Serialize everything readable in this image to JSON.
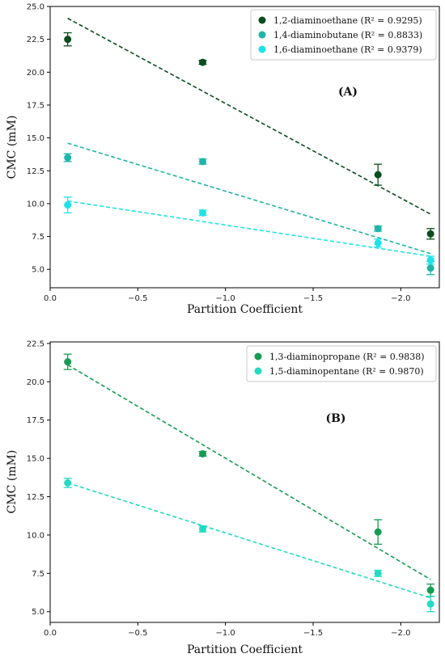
{
  "chart_data": [
    {
      "type": "scatter",
      "panel_label": "(A)",
      "xlabel": "Partition Coefficient",
      "ylabel": "CMC (mM)",
      "xlim": [
        0.0,
        -2.22
      ],
      "ylim": [
        3.6,
        25.0
      ],
      "xticks": [
        0.0,
        -0.5,
        -1.0,
        -1.5,
        -2.0
      ],
      "xtick_labels": [
        "0.0",
        "−0.5",
        "−1.0",
        "−1.5",
        "−2.0"
      ],
      "yticks": [
        5.0,
        7.5,
        10.0,
        12.5,
        15.0,
        17.5,
        20.0,
        22.5,
        25.0
      ],
      "ytick_labels": [
        "5.0",
        "7.5",
        "10.0",
        "12.5",
        "15.0",
        "17.5",
        "20.0",
        "22.5",
        "25.0"
      ],
      "grid": false,
      "legend_position": "top-right",
      "series": [
        {
          "name": "1,2-diaminoethane (R² = 0.9295)",
          "color": "#0b4d1e",
          "x": [
            -0.1,
            -0.87,
            -1.87,
            -2.17
          ],
          "y": [
            22.5,
            20.75,
            12.2,
            7.7
          ],
          "yerr": [
            0.5,
            0.15,
            0.8,
            0.4
          ],
          "trend": {
            "x": [
              -0.1,
              -2.17
            ],
            "y": [
              24.1,
              9.2
            ]
          }
        },
        {
          "name": "1,4-diaminobutane (R² = 0.8833)",
          "color": "#1fb5a8",
          "x": [
            -0.1,
            -0.87,
            -1.87,
            -2.17
          ],
          "y": [
            13.5,
            13.2,
            8.1,
            5.1
          ],
          "yerr": [
            0.3,
            0.2,
            0.2,
            0.5
          ],
          "trend": {
            "x": [
              -0.1,
              -2.17
            ],
            "y": [
              14.6,
              6.2
            ]
          }
        },
        {
          "name": "1,6-diaminoethane (R² = 0.9379)",
          "color": "#1de3e8",
          "x": [
            -0.1,
            -0.87,
            -1.87,
            -2.17
          ],
          "y": [
            9.9,
            9.3,
            7.0,
            5.7
          ],
          "yerr": [
            0.6,
            0.2,
            0.3,
            0.3
          ],
          "trend": {
            "x": [
              -0.1,
              -2.17
            ],
            "y": [
              10.2,
              6.0
            ]
          }
        }
      ]
    },
    {
      "type": "scatter",
      "panel_label": "(B)",
      "xlabel": "Partition Coefficient",
      "ylabel": "CMC (mM)",
      "xlim": [
        0.0,
        -2.22
      ],
      "ylim": [
        4.3,
        22.6
      ],
      "xticks": [
        0.0,
        -0.5,
        -1.0,
        -1.5,
        -2.0
      ],
      "xtick_labels": [
        "0.0",
        "−0.5",
        "−1.0",
        "−1.5",
        "−2.0"
      ],
      "yticks": [
        5.0,
        7.5,
        10.0,
        12.5,
        15.0,
        17.5,
        20.0,
        22.5
      ],
      "ytick_labels": [
        "5.0",
        "7.5",
        "10.0",
        "12.5",
        "15.0",
        "17.5",
        "20.0",
        "22.5"
      ],
      "grid": false,
      "legend_position": "top-right",
      "series": [
        {
          "name": "1,3-diaminopropane (R² = 0.9838)",
          "color": "#169c52",
          "x": [
            -0.1,
            -0.87,
            -1.87,
            -2.17
          ],
          "y": [
            21.3,
            15.3,
            10.2,
            6.4
          ],
          "yerr": [
            0.5,
            0.15,
            0.8,
            0.4
          ],
          "trend": {
            "x": [
              -0.1,
              -2.17
            ],
            "y": [
              21.1,
              7.1
            ]
          }
        },
        {
          "name": "1,5-diaminopentane (R² = 0.9870)",
          "color": "#22dbc2",
          "x": [
            -0.1,
            -0.87,
            -1.87,
            -2.17
          ],
          "y": [
            13.4,
            10.4,
            7.5,
            5.5
          ],
          "yerr": [
            0.3,
            0.2,
            0.2,
            0.5
          ],
          "trend": {
            "x": [
              -0.1,
              -2.17
            ],
            "y": [
              13.4,
              5.9
            ]
          }
        }
      ]
    }
  ]
}
